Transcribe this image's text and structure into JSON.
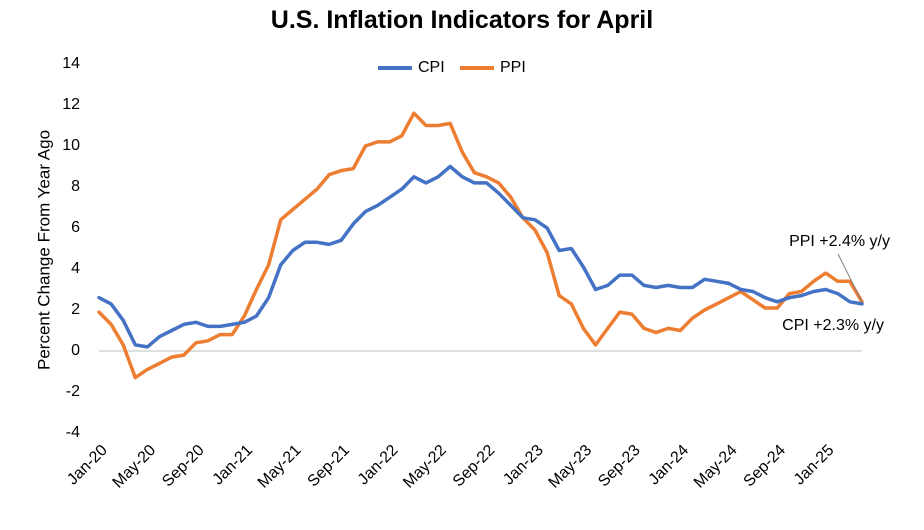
{
  "chart_data": {
    "type": "line",
    "title": "U.S. Inflation Indicators for April",
    "xlabel": "",
    "ylabel": "Percent Change From Year Ago",
    "ylim": [
      -4,
      14
    ],
    "yticks": [
      -4,
      -2,
      0,
      2,
      4,
      6,
      8,
      10,
      12,
      14
    ],
    "xticks": [
      "Jan-20",
      "May-20",
      "Sep-20",
      "Jan-21",
      "May-21",
      "Sep-21",
      "Jan-22",
      "May-22",
      "Sep-22",
      "Jan-23",
      "May-23",
      "Sep-23",
      "Jan-24",
      "May-24",
      "Sep-24",
      "Jan-25"
    ],
    "x": [
      "Jan-20",
      "Feb-20",
      "Mar-20",
      "Apr-20",
      "May-20",
      "Jun-20",
      "Jul-20",
      "Aug-20",
      "Sep-20",
      "Oct-20",
      "Nov-20",
      "Dec-20",
      "Jan-21",
      "Feb-21",
      "Mar-21",
      "Apr-21",
      "May-21",
      "Jun-21",
      "Jul-21",
      "Aug-21",
      "Sep-21",
      "Oct-21",
      "Nov-21",
      "Dec-21",
      "Jan-22",
      "Feb-22",
      "Mar-22",
      "Apr-22",
      "May-22",
      "Jun-22",
      "Jul-22",
      "Aug-22",
      "Sep-22",
      "Oct-22",
      "Nov-22",
      "Dec-22",
      "Jan-23",
      "Feb-23",
      "Mar-23",
      "Apr-23",
      "May-23",
      "Jun-23",
      "Jul-23",
      "Aug-23",
      "Sep-23",
      "Oct-23",
      "Nov-23",
      "Dec-23",
      "Jan-24",
      "Feb-24",
      "Mar-24",
      "Apr-24",
      "May-24",
      "Jun-24",
      "Jul-24",
      "Aug-24",
      "Sep-24",
      "Oct-24",
      "Nov-24",
      "Dec-24",
      "Jan-25",
      "Feb-25",
      "Mar-25",
      "Apr-25"
    ],
    "grid": false,
    "legend": "top-center",
    "series": [
      {
        "name": "CPI",
        "color": "#4472C4",
        "values": [
          2.6,
          2.3,
          1.5,
          0.3,
          0.2,
          0.7,
          1.0,
          1.3,
          1.4,
          1.2,
          1.2,
          1.3,
          1.4,
          1.7,
          2.6,
          4.2,
          4.9,
          5.3,
          5.3,
          5.2,
          5.4,
          6.2,
          6.8,
          7.1,
          7.5,
          7.9,
          8.5,
          8.2,
          8.5,
          9.0,
          8.5,
          8.2,
          8.2,
          7.7,
          7.1,
          6.5,
          6.4,
          6.0,
          4.9,
          5.0,
          4.1,
          3.0,
          3.2,
          3.7,
          3.7,
          3.2,
          3.1,
          3.2,
          3.1,
          3.1,
          3.5,
          3.4,
          3.3,
          3.0,
          2.9,
          2.6,
          2.4,
          2.6,
          2.7,
          2.9,
          3.0,
          2.8,
          2.4,
          2.3
        ]
      },
      {
        "name": "PPI",
        "color": "#ED7D31",
        "values": [
          1.9,
          1.3,
          0.3,
          -1.3,
          -0.9,
          -0.6,
          -0.3,
          -0.2,
          0.4,
          0.5,
          0.8,
          0.8,
          1.7,
          3.0,
          4.2,
          6.4,
          6.9,
          7.4,
          7.9,
          8.6,
          8.8,
          8.9,
          10.0,
          10.2,
          10.2,
          10.5,
          11.6,
          11.0,
          11.0,
          11.1,
          9.7,
          8.7,
          8.5,
          8.2,
          7.5,
          6.5,
          5.9,
          4.8,
          2.7,
          2.3,
          1.1,
          0.3,
          1.1,
          1.9,
          1.8,
          1.1,
          0.9,
          1.1,
          1.0,
          1.6,
          2.0,
          2.3,
          2.6,
          2.9,
          2.5,
          2.1,
          2.1,
          2.8,
          2.9,
          3.4,
          3.8,
          3.4,
          3.4,
          2.4
        ]
      }
    ],
    "annotations": [
      {
        "text": "PPI +2.4% y/y",
        "series": "PPI"
      },
      {
        "text": "CPI +2.3% y/y",
        "series": "CPI"
      }
    ]
  }
}
